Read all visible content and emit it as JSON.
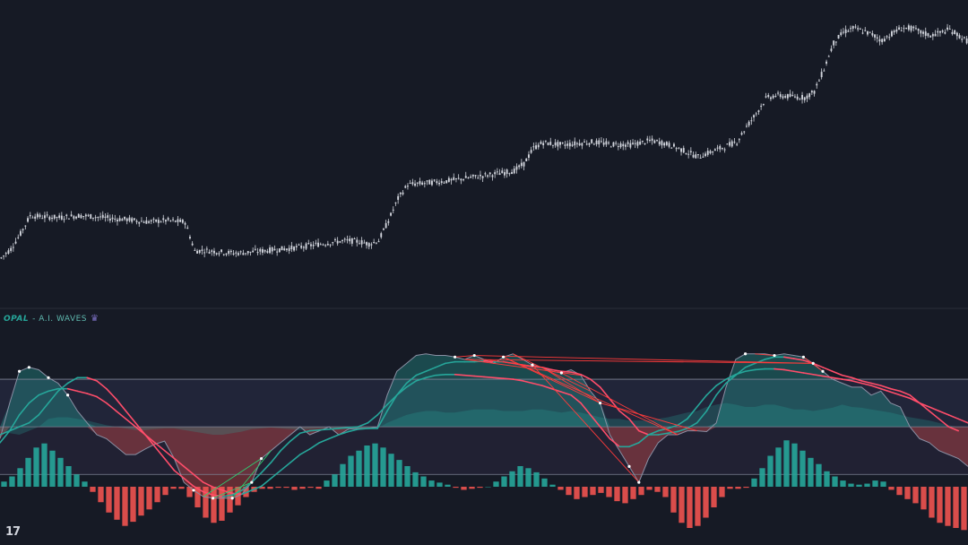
{
  "indicator": {
    "name": "OPAL",
    "subtitle": "- A.I. WAVES",
    "icon": "crown-icon"
  },
  "branding": {
    "logo_text": "17",
    "logo_icon": "tradingview-logo"
  },
  "colors": {
    "background": "#161a25",
    "candle": "#d1d4dc",
    "bullish": "#26a69a",
    "bearish": "#ef5350",
    "wave_fast": "#26a69a",
    "wave_slow": "#ff4d6a",
    "raw_line": "#8a8fa3",
    "band_line": "#7d8294",
    "pivot_line": "#ff3b3b",
    "bull_pivot_line": "#2ecc71"
  },
  "chart_data": [
    {
      "type": "candlestick",
      "title": "",
      "description_values": "closing price path in price units (unlabeled axis)",
      "closes": [
        48.2,
        50.1,
        53.4,
        57.3,
        57.1,
        57.0,
        56.9,
        57.1,
        57.3,
        57.2,
        57.0,
        56.8,
        56.6,
        56.5,
        56.2,
        56.0,
        56.1,
        56.3,
        56.1,
        55.9,
        49.7,
        49.8,
        49.6,
        49.4,
        49.2,
        49.3,
        49.5,
        49.7,
        49.9,
        50.1,
        50.3,
        50.6,
        50.9,
        51.2,
        51.5,
        51.8,
        51.9,
        51.7,
        51.2,
        51.9,
        56.2,
        61.0,
        64.0,
        64.2,
        64.4,
        64.6,
        64.8,
        65.1,
        65.4,
        65.7,
        66.0,
        66.3,
        66.6,
        67.0,
        68.5,
        71.9,
        73.1,
        72.8,
        72.6,
        72.8,
        73.0,
        73.2,
        73.0,
        72.7,
        72.7,
        72.6,
        73.0,
        73.5,
        73.2,
        72.6,
        71.8,
        70.9,
        70.0,
        70.8,
        71.6,
        72.4,
        73.3,
        76.5,
        79.4,
        82.6,
        83.3,
        83.1,
        83.0,
        82.8,
        84.1,
        89.0,
        94.6,
        96.9,
        97.8,
        97.2,
        96.4,
        95.1,
        96.6,
        97.8,
        97.8,
        96.9,
        96.2,
        96.8,
        97.5,
        96.1,
        94.7
      ],
      "x_range": [
        0,
        100
      ],
      "y_range": [
        40,
        100
      ]
    },
    {
      "type": "line",
      "title": "OPAL - A.I. WAVES",
      "y_range": [
        -140,
        120
      ],
      "overbought_level": 60,
      "mid_level": 0,
      "oversold_level": -60,
      "series": [
        {
          "values": [
            -15,
            30,
            70,
            75,
            72,
            62,
            55,
            40,
            20,
            5,
            -10,
            -15,
            -25,
            -35,
            -35,
            -28,
            -22,
            -18,
            -40,
            -70,
            -80,
            -88,
            -90,
            -90,
            -90,
            -85,
            -70,
            -40,
            -30,
            -20,
            -10,
            0,
            -10,
            -5,
            0,
            -10,
            -3,
            -2,
            -2,
            0,
            40,
            70,
            80,
            90,
            92,
            90,
            90,
            88,
            85,
            90,
            85,
            80,
            88,
            92,
            85,
            78,
            75,
            70,
            68,
            72,
            65,
            45,
            30,
            -10,
            -30,
            -50,
            -70,
            -40,
            -20,
            -10,
            -10,
            -5,
            -5,
            -6,
            5,
            50,
            85,
            92,
            92,
            92,
            90,
            92,
            90,
            88,
            80,
            70,
            60,
            55,
            50,
            50,
            40,
            45,
            30,
            25,
            0,
            -15,
            -20,
            -30,
            -35,
            -40,
            -50
          ]
        },
        {
          "values": [
            -20,
            -5,
            15,
            30,
            40,
            45,
            48,
            48,
            45,
            42,
            38,
            30,
            20,
            10,
            0,
            -10,
            -20,
            -30,
            -40,
            -50,
            -60,
            -70,
            -76,
            -80,
            -84,
            -85,
            -80,
            -75,
            -65,
            -55,
            -45,
            -35,
            -28,
            -20,
            -15,
            -10,
            -6,
            -3,
            -2,
            -2,
            20,
            40,
            55,
            65,
            70,
            75,
            80,
            82,
            82,
            82,
            83,
            82,
            82,
            80,
            78,
            76,
            75,
            72,
            70,
            69,
            66,
            60,
            50,
            35,
            20,
            10,
            -5,
            -10,
            -10,
            -8,
            -6,
            -2,
            5,
            20,
            40,
            55,
            65,
            75,
            80,
            85,
            88,
            88,
            86,
            84,
            80,
            75,
            70,
            65,
            62,
            58,
            55,
            52,
            48,
            45,
            40,
            30,
            20,
            10,
            0,
            -5
          ]
        },
        {
          "values": [
            -10,
            -5,
            0,
            5,
            15,
            30,
            45,
            55,
            62,
            62,
            58,
            48,
            35,
            20,
            5,
            -10,
            -25,
            -40,
            -55,
            -65,
            -75,
            -82,
            -86,
            -88,
            -86,
            -80,
            -70,
            -58,
            -45,
            -30,
            -18,
            -8,
            -5,
            -4,
            -3,
            -2,
            -1,
            0,
            5,
            15,
            28,
            40,
            50,
            58,
            62,
            65,
            66,
            66,
            65,
            64,
            63,
            62,
            61,
            60,
            58,
            55,
            52,
            48,
            44,
            40,
            30,
            15,
            0,
            -15,
            -25,
            -25,
            -20,
            -10,
            -5,
            -2,
            2,
            10,
            25,
            40,
            52,
            60,
            66,
            70,
            72,
            73,
            73,
            72,
            70,
            68,
            66,
            64,
            62,
            60,
            58,
            55,
            52,
            48,
            44,
            40,
            36,
            30,
            25,
            20,
            15,
            10,
            5
          ]
        },
        {
          "values": [
            -5,
            -8,
            -10,
            -5,
            0,
            10,
            12,
            12,
            10,
            8,
            5,
            2,
            0,
            -2,
            -4,
            -4,
            -3,
            -2,
            -2,
            -4,
            -6,
            -8,
            -10,
            -10,
            -8,
            -6,
            -3,
            -2,
            -1,
            -2,
            -3,
            -4,
            -3,
            -2,
            -1,
            -2,
            -3,
            -4,
            -3,
            -2,
            5,
            10,
            15,
            18,
            20,
            20,
            18,
            18,
            20,
            22,
            22,
            22,
            20,
            20,
            20,
            22,
            22,
            20,
            18,
            20,
            18,
            15,
            12,
            10,
            10,
            8,
            8,
            8,
            10,
            12,
            15,
            18,
            20,
            25,
            28,
            30,
            28,
            25,
            25,
            28,
            28,
            25,
            22,
            22,
            20,
            22,
            24,
            28,
            25,
            24,
            22,
            20,
            18,
            15,
            12,
            10,
            8,
            5,
            2,
            0,
            0
          ]
        }
      ]
    },
    {
      "type": "bar",
      "title": "",
      "y_range": [
        -40,
        50
      ],
      "values": [
        5,
        10,
        18,
        28,
        38,
        42,
        35,
        28,
        20,
        12,
        5,
        -5,
        -15,
        -25,
        -32,
        -38,
        -34,
        -28,
        -22,
        -15,
        -8,
        -2,
        -2,
        -10,
        -20,
        -30,
        -35,
        -33,
        -25,
        -18,
        -10,
        -5,
        -2,
        -2,
        -1,
        -1,
        -3,
        -2,
        -1,
        -2,
        6,
        12,
        22,
        30,
        35,
        40,
        42,
        38,
        32,
        26,
        20,
        14,
        10,
        6,
        4,
        2,
        -1,
        -3,
        -2,
        -1,
        0,
        5,
        10,
        15,
        20,
        18,
        14,
        8,
        2,
        -3,
        -8,
        -12,
        -10,
        -8,
        -6,
        -10,
        -14,
        -16,
        -12,
        -8,
        -3,
        -5,
        -10,
        -25,
        -35,
        -40,
        -38,
        -30,
        -20,
        -10,
        -2,
        -2,
        -1,
        8,
        18,
        30,
        38,
        45,
        42,
        35,
        28,
        22,
        15,
        10,
        6,
        3,
        2,
        3,
        6,
        5,
        -3,
        -8,
        -12,
        -16,
        -22,
        -30,
        -35,
        -38,
        -40,
        -42
      ]
    }
  ]
}
